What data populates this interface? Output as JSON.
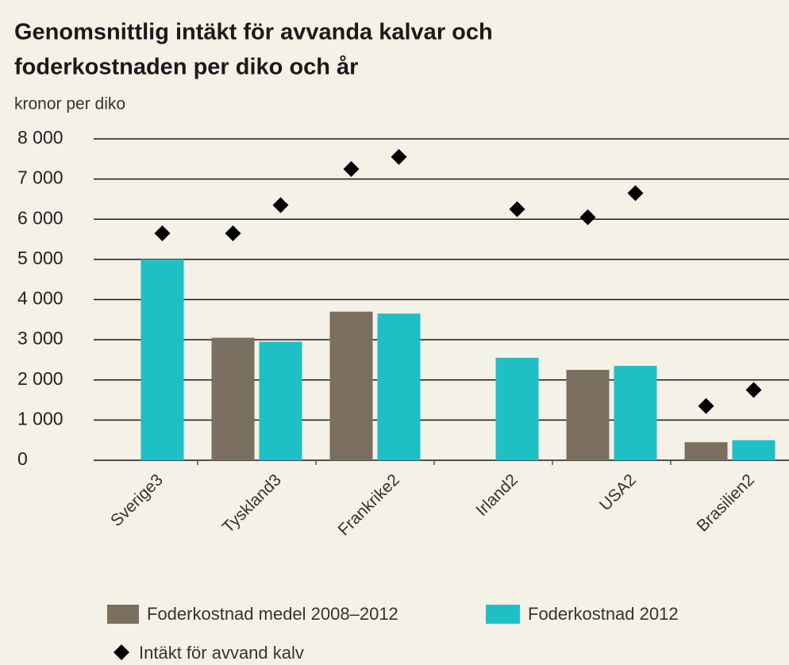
{
  "chart_data": {
    "type": "bar",
    "title": [
      "Genomsnittlig intäkt för avvanda kalvar och",
      "foderkostnaden per diko och år"
    ],
    "y_label": "kronor per diko",
    "categories": [
      "Sverige3",
      "Tyskland3",
      "Frankrike2",
      "Irland2",
      "USA2",
      "Brasilien2"
    ],
    "series": [
      {
        "name": "Foderkostnad medel 2008–2012",
        "color": "#7b6f60",
        "values": [
          null,
          3050,
          3700,
          null,
          2250,
          450
        ]
      },
      {
        "name": "Foderkostnad 2012",
        "color": "#1fbfc6",
        "values": [
          5000,
          2950,
          3650,
          2550,
          2350,
          500
        ]
      },
      {
        "name": "Intäkt för avvand kalv",
        "color": "#000000",
        "type": "scatter",
        "marker": "diamond",
        "values": [
          [
            null,
            5650
          ],
          [
            5650,
            6350
          ],
          [
            7250,
            7550
          ],
          [
            null,
            6250
          ],
          [
            6050,
            6650
          ],
          [
            1350,
            1750
          ]
        ]
      }
    ],
    "ylim": [
      0,
      8000
    ],
    "yticks": [
      0,
      {
        "value": 1000,
        "label": "1 000"
      },
      {
        "value": 2000,
        "label": "2 000"
      },
      {
        "value": 3000,
        "label": "3 000"
      },
      {
        "value": 4000,
        "label": "4 000"
      },
      {
        "value": 5000,
        "label": "5 000"
      },
      {
        "value": 6000,
        "label": "6 000"
      },
      {
        "value": 7000,
        "label": "7 000"
      },
      {
        "value": 8000,
        "label": "8 000"
      }
    ],
    "grid": true
  }
}
